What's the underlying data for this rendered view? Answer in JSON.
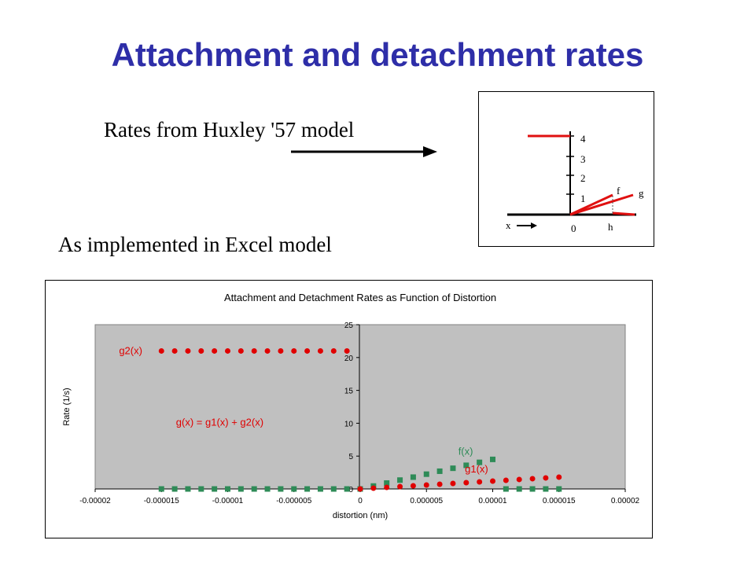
{
  "slide": {
    "title": "Attachment and detachment rates",
    "huxley_label": "Rates from Huxley '57 model",
    "excel_label": "As implemented in Excel model"
  },
  "inset": {
    "y_ticks": [
      "1",
      "2",
      "3",
      "4"
    ],
    "origin_label": "0",
    "x_label": "x",
    "h_label": "h",
    "f_label": "f",
    "g_label": "g"
  },
  "chart_data": {
    "type": "scatter",
    "title": "Attachment and Detachment Rates as Function of Distortion",
    "xlabel": "distortion (nm)",
    "ylabel": "Rate (1/s)",
    "xlim": [
      -2e-05,
      2e-05
    ],
    "ylim": [
      0,
      25
    ],
    "x_ticks": [
      -2e-05,
      -1.5e-05,
      -1e-05,
      -5e-06,
      0,
      5e-06,
      1e-05,
      1.5e-05,
      2e-05
    ],
    "x_tick_labels": [
      "-0.00002",
      "-0.000015",
      "-0.00001",
      "-0.000005",
      "0",
      "0.000005",
      "0.00001",
      "0.000015",
      "0.00002"
    ],
    "y_ticks": [
      0,
      5,
      10,
      15,
      20,
      25
    ],
    "y_tick_labels": [
      "0",
      "5",
      "10",
      "15",
      "20",
      "25"
    ],
    "grid": false,
    "plot_background": "#c0c0c0",
    "series": [
      {
        "name": "g2(x)",
        "color": "#e00000",
        "marker": "circle",
        "points": [
          [
            -1.5e-05,
            21
          ],
          [
            -1.4e-05,
            21
          ],
          [
            -1.3e-05,
            21
          ],
          [
            -1.2e-05,
            21
          ],
          [
            -1.1e-05,
            21
          ],
          [
            -1e-05,
            21
          ],
          [
            -9e-06,
            21
          ],
          [
            -8e-06,
            21
          ],
          [
            -7e-06,
            21
          ],
          [
            -6e-06,
            21
          ],
          [
            -5e-06,
            21
          ],
          [
            -4e-06,
            21
          ],
          [
            -3e-06,
            21
          ],
          [
            -2e-06,
            21
          ],
          [
            -1e-06,
            21
          ]
        ]
      },
      {
        "name": "f(x)",
        "color": "#2e8b57",
        "marker": "square",
        "points": [
          [
            -1.5e-05,
            0
          ],
          [
            -1.4e-05,
            0
          ],
          [
            -1.3e-05,
            0
          ],
          [
            -1.2e-05,
            0
          ],
          [
            -1.1e-05,
            0
          ],
          [
            -1e-05,
            0
          ],
          [
            -9e-06,
            0
          ],
          [
            -8e-06,
            0
          ],
          [
            -7e-06,
            0
          ],
          [
            -6e-06,
            0
          ],
          [
            -5e-06,
            0
          ],
          [
            -4e-06,
            0
          ],
          [
            -3e-06,
            0
          ],
          [
            -2e-06,
            0
          ],
          [
            -1e-06,
            0
          ],
          [
            0,
            0
          ],
          [
            1e-06,
            0.45
          ],
          [
            2e-06,
            0.9
          ],
          [
            3e-06,
            1.35
          ],
          [
            4e-06,
            1.8
          ],
          [
            5e-06,
            2.25
          ],
          [
            6e-06,
            2.7
          ],
          [
            7e-06,
            3.15
          ],
          [
            8e-06,
            3.6
          ],
          [
            9e-06,
            4.05
          ],
          [
            1e-05,
            4.5
          ],
          [
            1.1e-05,
            0
          ],
          [
            1.2e-05,
            0
          ],
          [
            1.3e-05,
            0
          ],
          [
            1.4e-05,
            0
          ],
          [
            1.5e-05,
            0
          ]
        ]
      },
      {
        "name": "g1(x)",
        "color": "#e00000",
        "marker": "circle",
        "points": [
          [
            0,
            0
          ],
          [
            1e-06,
            0.12
          ],
          [
            2e-06,
            0.24
          ],
          [
            3e-06,
            0.36
          ],
          [
            4e-06,
            0.48
          ],
          [
            5e-06,
            0.6
          ],
          [
            6e-06,
            0.72
          ],
          [
            7e-06,
            0.84
          ],
          [
            8e-06,
            0.96
          ],
          [
            9e-06,
            1.08
          ],
          [
            1e-05,
            1.2
          ],
          [
            1.1e-05,
            1.32
          ],
          [
            1.2e-05,
            1.44
          ],
          [
            1.3e-05,
            1.56
          ],
          [
            1.4e-05,
            1.68
          ],
          [
            1.5e-05,
            1.8
          ]
        ]
      }
    ],
    "annotations": [
      {
        "text": "g2(x)",
        "color": "#e00000",
        "at": [
          -1.82e-05,
          20.5
        ]
      },
      {
        "text": "g(x) = g1(x) + g2(x)",
        "color": "#e00000",
        "at": [
          -1.39e-05,
          9.6
        ]
      },
      {
        "text": "f(x)",
        "color": "#2e8b57",
        "at": [
          7.4e-06,
          5.2
        ]
      },
      {
        "text": "g1(x)",
        "color": "#e00000",
        "at": [
          7.9e-06,
          2.5
        ]
      }
    ]
  }
}
